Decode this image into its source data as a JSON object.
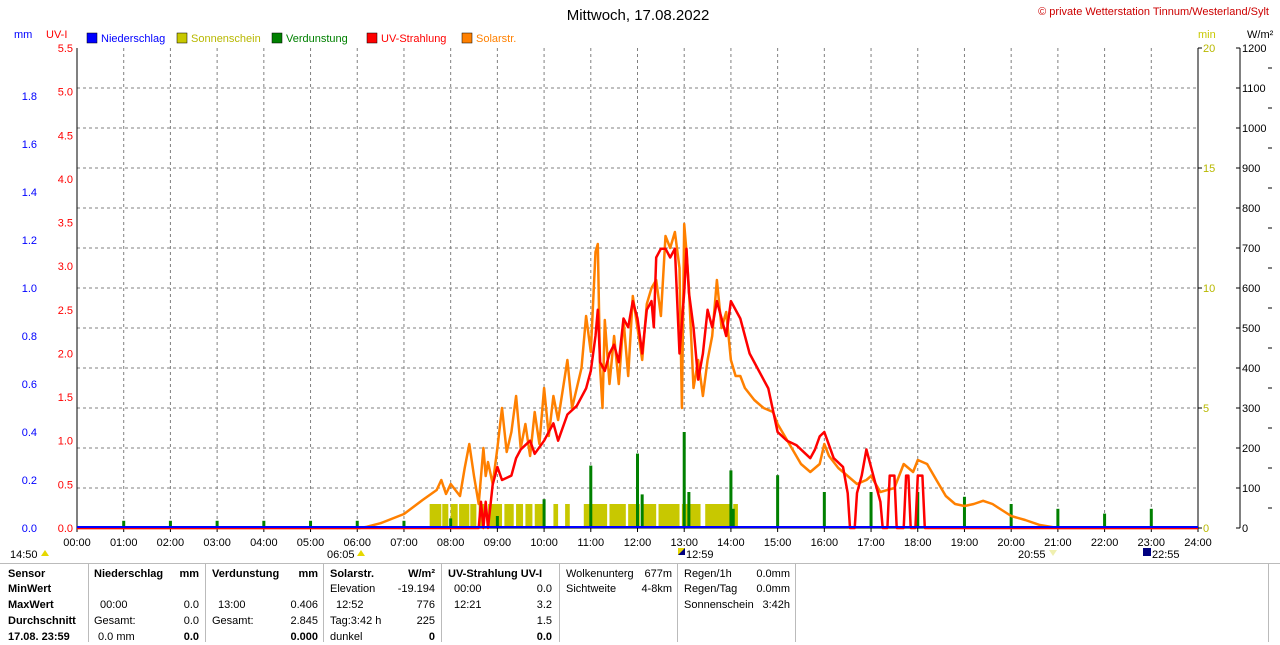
{
  "header": {
    "title": "Mittwoch, 17.08.2022",
    "copyright": "© private Wetterstation Tinnum/Westerland/Sylt",
    "unit_mm": "mm",
    "unit_uvi": "UV-I",
    "unit_min": "min",
    "unit_wm2": "W/m²"
  },
  "legend": [
    {
      "label": "Niederschlag",
      "color": "#0000ff"
    },
    {
      "label": "Sonnenschein",
      "color": "#c8c800"
    },
    {
      "label": "Verdunstung",
      "color": "#008000"
    },
    {
      "label": "UV-Strahlung",
      "color": "#ff0000"
    },
    {
      "label": "Solarstr.",
      "color": "#ff8000"
    }
  ],
  "colors": {
    "mm_axis": "#0000ff",
    "uvi_axis": "#ff0000",
    "min_axis": "#c8c800",
    "wm2_axis": "#000000",
    "grid": "#808080",
    "sunshine": "#c8c800",
    "evaporation": "#008000",
    "uv": "#ff0000",
    "solar": "#ff8000"
  },
  "markers": {
    "sunrise": "06:05",
    "noon": "12:59",
    "sunset": "20:55",
    "moon": "22:55",
    "left_time": "14:50"
  },
  "chart_data": {
    "type": "line",
    "x_ticks": [
      "00:00",
      "01:00",
      "02:00",
      "03:00",
      "04:00",
      "05:00",
      "06:00",
      "07:00",
      "08:00",
      "09:00",
      "10:00",
      "11:00",
      "12:00",
      "13:00",
      "14:00",
      "15:00",
      "16:00",
      "17:00",
      "18:00",
      "19:00",
      "20:00",
      "21:00",
      "22:00",
      "23:00",
      "24:00"
    ],
    "xlim": [
      0,
      24
    ],
    "grid": true,
    "axes": {
      "mm": {
        "ticks": [
          "0.0",
          "0.2",
          "0.4",
          "0.6",
          "0.8",
          "1.0",
          "1.2",
          "1.4",
          "1.6",
          "1.8"
        ],
        "ylim": [
          0,
          2.0
        ]
      },
      "uvi": {
        "ticks": [
          "0.0",
          "0.5",
          "1.0",
          "1.5",
          "2.0",
          "2.5",
          "3.0",
          "3.5",
          "4.0",
          "4.5",
          "5.0",
          "5.5"
        ],
        "ylim": [
          0,
          5.5
        ]
      },
      "min": {
        "ticks": [
          "0",
          "5",
          "10",
          "15",
          "20"
        ],
        "ylim": [
          0,
          20
        ]
      },
      "wm2": {
        "ticks": [
          "0",
          "100",
          "200",
          "300",
          "400",
          "500",
          "600",
          "700",
          "800",
          "900",
          "1000",
          "1100",
          "1200"
        ],
        "ylim": [
          0,
          1200
        ]
      }
    },
    "series": [
      {
        "name": "Solarstr.",
        "axis": "wm2",
        "points": [
          [
            0,
            0
          ],
          [
            6.05,
            0
          ],
          [
            6.2,
            3
          ],
          [
            6.5,
            12
          ],
          [
            7,
            35
          ],
          [
            7.4,
            70
          ],
          [
            7.7,
            95
          ],
          [
            7.8,
            120
          ],
          [
            7.9,
            85
          ],
          [
            8.0,
            110
          ],
          [
            8.2,
            80
          ],
          [
            8.3,
            150
          ],
          [
            8.4,
            210
          ],
          [
            8.5,
            130
          ],
          [
            8.6,
            60
          ],
          [
            8.7,
            200
          ],
          [
            8.75,
            130
          ],
          [
            8.8,
            165
          ],
          [
            8.9,
            110
          ],
          [
            9.0,
            200
          ],
          [
            9.1,
            300
          ],
          [
            9.2,
            190
          ],
          [
            9.3,
            240
          ],
          [
            9.4,
            330
          ],
          [
            9.5,
            200
          ],
          [
            9.6,
            260
          ],
          [
            9.7,
            180
          ],
          [
            9.8,
            290
          ],
          [
            9.9,
            210
          ],
          [
            10.0,
            350
          ],
          [
            10.1,
            230
          ],
          [
            10.2,
            330
          ],
          [
            10.3,
            270
          ],
          [
            10.5,
            420
          ],
          [
            10.6,
            300
          ],
          [
            10.8,
            400
          ],
          [
            10.9,
            530
          ],
          [
            11.0,
            440
          ],
          [
            11.1,
            690
          ],
          [
            11.15,
            710
          ],
          [
            11.2,
            400
          ],
          [
            11.25,
            300
          ],
          [
            11.3,
            520
          ],
          [
            11.4,
            360
          ],
          [
            11.5,
            480
          ],
          [
            11.6,
            360
          ],
          [
            11.7,
            520
          ],
          [
            11.8,
            380
          ],
          [
            11.9,
            580
          ],
          [
            12.0,
            500
          ],
          [
            12.1,
            420
          ],
          [
            12.2,
            560
          ],
          [
            12.3,
            600
          ],
          [
            12.4,
            620
          ],
          [
            12.5,
            530
          ],
          [
            12.6,
            730
          ],
          [
            12.7,
            700
          ],
          [
            12.8,
            740
          ],
          [
            12.9,
            650
          ],
          [
            12.95,
            300
          ],
          [
            13.0,
            760
          ],
          [
            13.05,
            690
          ],
          [
            13.1,
            600
          ],
          [
            13.2,
            350
          ],
          [
            13.3,
            420
          ],
          [
            13.4,
            330
          ],
          [
            13.5,
            420
          ],
          [
            13.6,
            480
          ],
          [
            13.7,
            620
          ],
          [
            13.8,
            500
          ],
          [
            13.9,
            540
          ],
          [
            14.0,
            420
          ],
          [
            14.1,
            380
          ],
          [
            14.2,
            380
          ],
          [
            14.3,
            350
          ],
          [
            14.5,
            320
          ],
          [
            14.7,
            300
          ],
          [
            14.9,
            290
          ],
          [
            15.0,
            260
          ],
          [
            15.2,
            220
          ],
          [
            15.5,
            160
          ],
          [
            15.7,
            140
          ],
          [
            15.9,
            160
          ],
          [
            16.0,
            210
          ],
          [
            16.1,
            180
          ],
          [
            16.3,
            150
          ],
          [
            16.5,
            130
          ],
          [
            16.7,
            110
          ],
          [
            16.9,
            120
          ],
          [
            17.0,
            130
          ],
          [
            17.2,
            90
          ],
          [
            17.5,
            100
          ],
          [
            17.7,
            160
          ],
          [
            17.9,
            140
          ],
          [
            18.0,
            170
          ],
          [
            18.2,
            160
          ],
          [
            18.4,
            120
          ],
          [
            18.6,
            80
          ],
          [
            18.8,
            60
          ],
          [
            19.0,
            55
          ],
          [
            19.2,
            60
          ],
          [
            19.4,
            68
          ],
          [
            19.6,
            60
          ],
          [
            19.8,
            45
          ],
          [
            20.0,
            30
          ],
          [
            20.3,
            20
          ],
          [
            20.6,
            8
          ],
          [
            20.9,
            2
          ],
          [
            21.0,
            0
          ],
          [
            24,
            0
          ]
        ]
      },
      {
        "name": "UV-Strahlung",
        "axis": "uvi",
        "points": [
          [
            0,
            0
          ],
          [
            8.6,
            0
          ],
          [
            8.65,
            0.3
          ],
          [
            8.7,
            0
          ],
          [
            8.75,
            0.3
          ],
          [
            8.8,
            0
          ],
          [
            8.9,
            0.5
          ],
          [
            9.0,
            0.7
          ],
          [
            9.1,
            0.55
          ],
          [
            9.3,
            0.6
          ],
          [
            9.4,
            0.8
          ],
          [
            9.5,
            0.9
          ],
          [
            9.6,
            0.95
          ],
          [
            9.7,
            1.0
          ],
          [
            9.8,
            0.85
          ],
          [
            10.0,
            1.0
          ],
          [
            10.2,
            1.2
          ],
          [
            10.3,
            1.0
          ],
          [
            10.5,
            1.3
          ],
          [
            10.7,
            1.4
          ],
          [
            10.9,
            1.6
          ],
          [
            11.0,
            1.8
          ],
          [
            11.1,
            2.2
          ],
          [
            11.15,
            2.5
          ],
          [
            11.2,
            1.9
          ],
          [
            11.3,
            1.8
          ],
          [
            11.4,
            2.0
          ],
          [
            11.5,
            2.1
          ],
          [
            11.6,
            1.9
          ],
          [
            11.7,
            2.4
          ],
          [
            11.8,
            2.3
          ],
          [
            11.9,
            2.6
          ],
          [
            12.0,
            2.4
          ],
          [
            12.1,
            2.0
          ],
          [
            12.2,
            2.5
          ],
          [
            12.3,
            2.6
          ],
          [
            12.35,
            2.3
          ],
          [
            12.4,
            3.1
          ],
          [
            12.5,
            3.2
          ],
          [
            12.6,
            3.2
          ],
          [
            12.7,
            3.1
          ],
          [
            12.8,
            3.2
          ],
          [
            12.9,
            2.0
          ],
          [
            13.0,
            2.7
          ],
          [
            13.05,
            3.2
          ],
          [
            13.1,
            2.7
          ],
          [
            13.2,
            2.3
          ],
          [
            13.3,
            1.7
          ],
          [
            13.4,
            2.0
          ],
          [
            13.5,
            2.5
          ],
          [
            13.6,
            2.3
          ],
          [
            13.7,
            2.6
          ],
          [
            13.8,
            2.4
          ],
          [
            13.9,
            2.2
          ],
          [
            14.0,
            2.6
          ],
          [
            14.2,
            2.4
          ],
          [
            14.4,
            2.0
          ],
          [
            14.6,
            1.8
          ],
          [
            14.8,
            1.6
          ],
          [
            15.0,
            1.1
          ],
          [
            15.2,
            1.0
          ],
          [
            15.4,
            0.95
          ],
          [
            15.6,
            0.85
          ],
          [
            15.7,
            0.8
          ],
          [
            15.8,
            0.9
          ],
          [
            15.9,
            1.05
          ],
          [
            16.0,
            1.1
          ],
          [
            16.1,
            0.95
          ],
          [
            16.2,
            0.8
          ],
          [
            16.4,
            0.7
          ],
          [
            16.5,
            0.4
          ],
          [
            16.55,
            0
          ],
          [
            16.65,
            0
          ],
          [
            16.7,
            0.4
          ],
          [
            16.8,
            0.6
          ],
          [
            16.9,
            0.9
          ],
          [
            17.0,
            0.7
          ],
          [
            17.1,
            0.5
          ],
          [
            17.2,
            0.3
          ],
          [
            17.25,
            0
          ],
          [
            17.35,
            0
          ],
          [
            17.4,
            0.6
          ],
          [
            17.5,
            0.6
          ],
          [
            17.55,
            0
          ],
          [
            17.7,
            0
          ],
          [
            17.75,
            0.6
          ],
          [
            17.8,
            0.6
          ],
          [
            17.85,
            0
          ],
          [
            17.95,
            0
          ],
          [
            18.0,
            0.6
          ],
          [
            18.1,
            0.6
          ],
          [
            18.15,
            0
          ],
          [
            24,
            0
          ]
        ]
      },
      {
        "name": "Verdunstung",
        "axis": "min",
        "bars": [
          [
            1,
            0.3
          ],
          [
            2,
            0.3
          ],
          [
            3,
            0.3
          ],
          [
            4,
            0.3
          ],
          [
            5,
            0.3
          ],
          [
            6,
            0.3
          ],
          [
            7,
            0.3
          ],
          [
            8,
            0.4
          ],
          [
            9,
            0.5
          ],
          [
            10,
            1.2
          ],
          [
            11,
            2.6
          ],
          [
            12,
            3.1
          ],
          [
            12.1,
            1.4
          ],
          [
            13,
            4.0
          ],
          [
            13.1,
            1.5
          ],
          [
            14,
            2.4
          ],
          [
            14.05,
            0.8
          ],
          [
            15,
            2.2
          ],
          [
            16,
            1.5
          ],
          [
            17,
            1.5
          ],
          [
            18,
            1.5
          ],
          [
            19,
            1.3
          ],
          [
            20,
            1.0
          ],
          [
            21,
            0.8
          ],
          [
            22,
            0.6
          ],
          [
            23,
            0.8
          ]
        ]
      },
      {
        "name": "Sonnenschein",
        "axis": "min",
        "ranges": [
          [
            7.55,
            7.8
          ],
          [
            7.82,
            7.95
          ],
          [
            8.0,
            8.15
          ],
          [
            8.18,
            8.4
          ],
          [
            8.42,
            8.55
          ],
          [
            8.6,
            8.72
          ],
          [
            8.8,
            9.1
          ],
          [
            9.15,
            9.35
          ],
          [
            9.4,
            9.55
          ],
          [
            9.6,
            9.75
          ],
          [
            9.8,
            10.0
          ],
          [
            10.2,
            10.3
          ],
          [
            10.45,
            10.55
          ],
          [
            10.85,
            11.35
          ],
          [
            11.4,
            11.75
          ],
          [
            11.8,
            12.05
          ],
          [
            12.1,
            12.4
          ],
          [
            12.45,
            12.9
          ],
          [
            12.95,
            13.35
          ],
          [
            13.45,
            14.0
          ],
          [
            14.05,
            14.15
          ]
        ],
        "height": 1.0
      }
    ]
  },
  "stats": {
    "sensor": {
      "h1": "Sensor",
      "min": "MinWert",
      "max": "MaxWert",
      "avg": "Durchschnitt",
      "last": "17.08. 23:59"
    },
    "niederschlag": {
      "h1": "Niederschlag",
      "h2": "mm",
      "max_t": "00:00",
      "max_v": "0.0",
      "sum_l": "Gesamt:",
      "sum_v": "0.0",
      "last_l": "0.0 mm",
      "last_v": "0.0"
    },
    "verdunstung": {
      "h1": "Verdunstung",
      "h2": "mm",
      "max_t": "13:00",
      "max_v": "0.406",
      "sum_l": "Gesamt:",
      "sum_v": "2.845",
      "last_v": "0.000"
    },
    "solar": {
      "h1": "Solarstr.",
      "h2": "W/m²",
      "elev_l": "Elevation",
      "elev_v": "-19.194",
      "max_t": "12:52",
      "max_v": "776",
      "day_l": "Tag:3:42 h",
      "day_v": "225",
      "dark_l": "dunkel",
      "dark_v": "0"
    },
    "uv": {
      "h1": "UV-Strahlung UV-I",
      "min_t": "00:00",
      "min_v": "0.0",
      "max_t": "12:21",
      "max_v": "3.2",
      "avg_v": "1.5",
      "last_v": "0.0"
    },
    "cloud": {
      "base_l": "Wolkenunterg",
      "base_v": "677m",
      "vis_l": "Sichtweite",
      "vis_v": "4-8km"
    },
    "rain": {
      "hour_l": "Regen/1h",
      "hour_v": "0.0mm",
      "day_l": "Regen/Tag",
      "day_v": "0.0mm",
      "sun_l": "Sonnenschein",
      "sun_v": "3:42h"
    }
  }
}
